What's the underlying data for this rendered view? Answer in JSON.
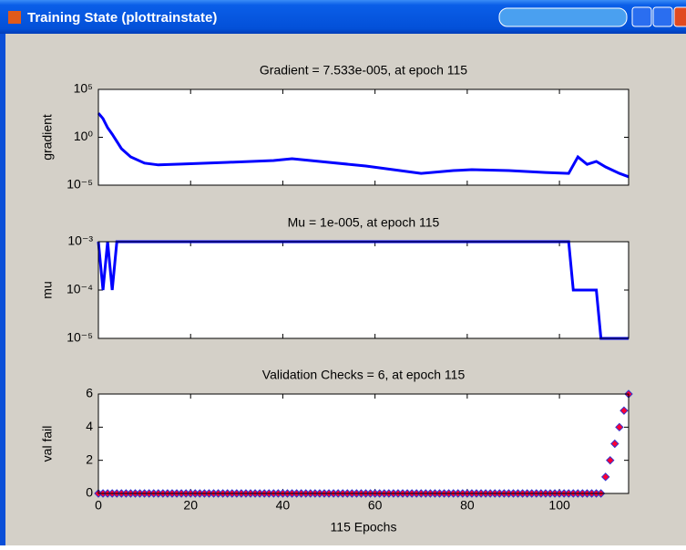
{
  "window": {
    "title": "Training State (plottrainstate)"
  },
  "chart_data": [
    {
      "type": "line",
      "title": "Gradient = 7.533e-005, at epoch 115",
      "ylabel": "gradient",
      "ylog": true,
      "color": "#0000ff",
      "xlim": [
        0,
        115
      ],
      "xticks": [
        0,
        20,
        40,
        60,
        80,
        100
      ],
      "xtick_labels": false,
      "ylim": [
        1e-05,
        100000
      ],
      "yticks": [
        {
          "value": 1e-05,
          "label": "10⁻⁵"
        },
        {
          "value": 1,
          "label": "10⁰"
        },
        {
          "value": 100000,
          "label": "10⁵"
        }
      ],
      "x": [
        0,
        1,
        2,
        3,
        5,
        7,
        10,
        13,
        18,
        28,
        38,
        42,
        48,
        58,
        70,
        77,
        81,
        89,
        97,
        102,
        104,
        106,
        108,
        110,
        113,
        115
      ],
      "values": [
        330,
        89,
        10,
        2.1,
        0.065,
        0.009,
        0.002,
        0.0013,
        0.0016,
        0.0024,
        0.0037,
        0.0058,
        0.003,
        0.001,
        0.00017,
        0.00033,
        0.00042,
        0.00033,
        0.00021,
        0.00017,
        0.009,
        0.0015,
        0.003,
        0.0008,
        0.00017,
        7.533e-05
      ]
    },
    {
      "type": "line",
      "title": "Mu = 1e-005, at epoch 115",
      "ylabel": "mu",
      "ylog": true,
      "color": "#0000ff",
      "xlim": [
        0,
        115
      ],
      "xticks": [
        0,
        20,
        40,
        60,
        80,
        100
      ],
      "xtick_labels": false,
      "ylim": [
        1e-05,
        0.001
      ],
      "yticks": [
        {
          "value": 1e-05,
          "label": "10⁻⁵"
        },
        {
          "value": 0.0001,
          "label": "10⁻⁴"
        },
        {
          "value": 0.001,
          "label": "10⁻³"
        }
      ],
      "x": [
        0,
        1,
        2,
        3,
        4,
        102,
        103,
        108,
        109,
        115
      ],
      "values": [
        0.001,
        0.0001,
        0.001,
        0.0001,
        0.001,
        0.001,
        0.0001,
        0.0001,
        1e-05,
        1e-05
      ]
    },
    {
      "type": "scatter",
      "title": "Validation Checks = 6, at epoch 115",
      "ylabel": "val fail",
      "xlabel": "115 Epochs",
      "ylog": false,
      "color": "#ff0033",
      "edgecolor": "#3333cc",
      "xlim": [
        0,
        115
      ],
      "xticks": [
        0,
        20,
        40,
        60,
        80,
        100
      ],
      "xtick_labels": true,
      "ylim": [
        0,
        6
      ],
      "yticks": [
        0,
        2,
        4,
        6
      ],
      "x": [
        0,
        1,
        2,
        3,
        4,
        5,
        6,
        7,
        8,
        9,
        10,
        11,
        12,
        13,
        14,
        15,
        16,
        17,
        18,
        19,
        20,
        21,
        22,
        23,
        24,
        25,
        26,
        27,
        28,
        29,
        30,
        31,
        32,
        33,
        34,
        35,
        36,
        37,
        38,
        39,
        40,
        41,
        42,
        43,
        44,
        45,
        46,
        47,
        48,
        49,
        50,
        51,
        52,
        53,
        54,
        55,
        56,
        57,
        58,
        59,
        60,
        61,
        62,
        63,
        64,
        65,
        66,
        67,
        68,
        69,
        70,
        71,
        72,
        73,
        74,
        75,
        76,
        77,
        78,
        79,
        80,
        81,
        82,
        83,
        84,
        85,
        86,
        87,
        88,
        89,
        90,
        91,
        92,
        93,
        94,
        95,
        96,
        97,
        98,
        99,
        100,
        101,
        102,
        103,
        104,
        105,
        106,
        107,
        108,
        109,
        110,
        111,
        112,
        113,
        114,
        115
      ],
      "values": [
        0,
        0,
        0,
        0,
        0,
        0,
        0,
        0,
        0,
        0,
        0,
        0,
        0,
        0,
        0,
        0,
        0,
        0,
        0,
        0,
        0,
        0,
        0,
        0,
        0,
        0,
        0,
        0,
        0,
        0,
        0,
        0,
        0,
        0,
        0,
        0,
        0,
        0,
        0,
        0,
        0,
        0,
        0,
        0,
        0,
        0,
        0,
        0,
        0,
        0,
        0,
        0,
        0,
        0,
        0,
        0,
        0,
        0,
        0,
        0,
        0,
        0,
        0,
        0,
        0,
        0,
        0,
        0,
        0,
        0,
        0,
        0,
        0,
        0,
        0,
        0,
        0,
        0,
        0,
        0,
        0,
        0,
        0,
        0,
        0,
        0,
        0,
        0,
        0,
        0,
        0,
        0,
        0,
        0,
        0,
        0,
        0,
        0,
        0,
        0,
        0,
        0,
        0,
        0,
        0,
        0,
        0,
        0,
        0,
        0,
        1,
        2,
        3,
        4,
        5,
        6
      ]
    }
  ]
}
